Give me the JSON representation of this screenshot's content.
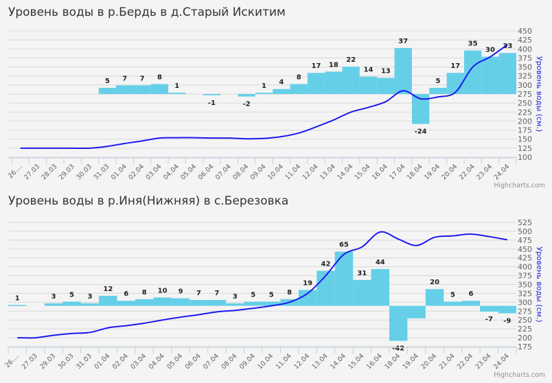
{
  "chart_data": [
    {
      "type": "bar+line",
      "title": "Уровень воды в р.Бердь в д.Старый Искитим",
      "ylabel": "Уровень воды (см.)",
      "ylim": [
        100,
        450
      ],
      "ytick_step": 25,
      "bar_baseline": 275,
      "bar_scale": 3.45,
      "credit": "Highcharts.com",
      "categories": [
        "26....",
        "27.03",
        "28.03",
        "29.03",
        "30.03",
        "31.03",
        "01.04",
        "02.04",
        "03.04",
        "04.04",
        "05.04",
        "06.04",
        "07.04",
        "08.04",
        "09.04",
        "10.04",
        "11.04",
        "12.04",
        "13.04",
        "14.04",
        "15.04",
        "16.04",
        "17.04",
        "18.04",
        "19.04",
        "20.04",
        "22.04",
        "23.04",
        "24.04"
      ],
      "bar_values": [
        null,
        null,
        null,
        null,
        null,
        5,
        7,
        7,
        8,
        1,
        null,
        -1,
        null,
        -2,
        1,
        4,
        8,
        17,
        18,
        22,
        14,
        13,
        37,
        -24,
        5,
        17,
        35,
        30,
        33
      ],
      "line_values": [
        125,
        125,
        125,
        125,
        125,
        130,
        138,
        145,
        153,
        154,
        154,
        153,
        153,
        151,
        152,
        157,
        167,
        184,
        203,
        225,
        238,
        254,
        284,
        262,
        267,
        280,
        350,
        378,
        412
      ],
      "colors": {
        "bar": "#66cfe8",
        "line": "#1a1aee"
      }
    },
    {
      "type": "bar+line",
      "title": "Уровень воды в р.Иня(Нижняя) в с.Березовка",
      "ylabel": "Уровень воды (см.)",
      "ylim": [
        175,
        525
      ],
      "ytick_step": 25,
      "bar_baseline": 290,
      "bar_scale": 2.35,
      "credit": "Highcharts.com",
      "categories": [
        "26....",
        "27.03",
        "29.03",
        "30.03",
        "31.03",
        "01.04",
        "02.04",
        "03.04",
        "04.04",
        "05.04",
        "06.04",
        "07.04",
        "08.04",
        "09.04",
        "10.04",
        "11.04",
        "12.04",
        "13.04",
        "14.04",
        "15.04",
        "16.04",
        "18.04",
        "19.04",
        "20.04",
        "21.04",
        "22.04",
        "23.04",
        "24.04"
      ],
      "bar_values": [
        1,
        null,
        3,
        5,
        3,
        12,
        6,
        8,
        10,
        9,
        7,
        7,
        3,
        5,
        5,
        8,
        19,
        42,
        65,
        31,
        44,
        -42,
        -15,
        20,
        5,
        6,
        -7,
        -9
      ],
      "bar_labels": [
        "1",
        "",
        "3",
        "5",
        "3",
        "12",
        "6",
        "8",
        "10",
        "9",
        "7",
        "7",
        "3",
        "5",
        "5",
        "8",
        "19",
        "42",
        "65",
        "31",
        "44",
        "-42",
        "",
        "20",
        "5",
        "6",
        "-7",
        "-9"
      ],
      "line_values": [
        200,
        200,
        207,
        212,
        215,
        228,
        234,
        241,
        250,
        258,
        265,
        273,
        277,
        283,
        290,
        300,
        325,
        375,
        435,
        456,
        498,
        478,
        460,
        483,
        487,
        492,
        485,
        476
      ],
      "colors": {
        "bar": "#66cfe8",
        "line": "#1a1aee"
      }
    }
  ]
}
